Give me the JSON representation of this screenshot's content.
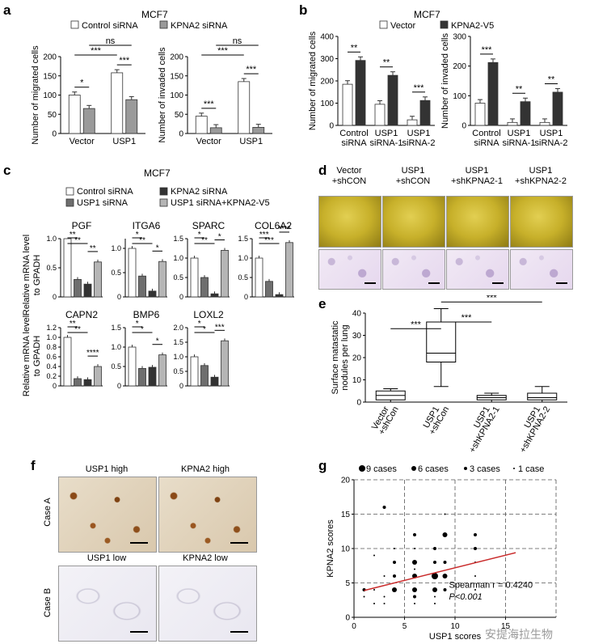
{
  "panel_a": {
    "letter": "a",
    "title": "MCF7",
    "legend": [
      "Control siRNA",
      "KPNA2 siRNA"
    ],
    "charts": [
      {
        "type": "bar",
        "ylabel": "Number of migrated cells",
        "ylim": [
          0,
          200
        ],
        "yticks": [
          "0",
          "50",
          "100",
          "150",
          "200"
        ],
        "categories": [
          "Vector",
          "USP1"
        ],
        "series": [
          {
            "name": "Control siRNA",
            "values": [
              100,
              158
            ]
          },
          {
            "name": "KPNA2 siRNA",
            "values": [
              65,
              88
            ]
          }
        ],
        "sig": [
          "*",
          "***",
          "***",
          "ns"
        ]
      },
      {
        "type": "bar",
        "ylabel": "Number of invaded cells",
        "ylim": [
          0,
          200
        ],
        "yticks": [
          "0",
          "50",
          "100",
          "150",
          "200"
        ],
        "categories": [
          "Vector",
          "USP1"
        ],
        "series": [
          {
            "name": "Control siRNA",
            "values": [
              45,
              135
            ]
          },
          {
            "name": "KPNA2 siRNA",
            "values": [
              15,
              16
            ]
          }
        ],
        "sig": [
          "***",
          "***",
          "***",
          "ns"
        ]
      }
    ]
  },
  "panel_b": {
    "letter": "b",
    "title": "MCF7",
    "legend": [
      "Vector",
      "KPNA2-V5"
    ],
    "charts": [
      {
        "type": "bar",
        "ylabel": "Number of migrated cells",
        "ylim": [
          0,
          400
        ],
        "yticks": [
          "0",
          "100",
          "200",
          "300",
          "400"
        ],
        "categories": [
          [
            "Control",
            "siRNA"
          ],
          [
            "USP1",
            "siRNA-1"
          ],
          [
            "USP1",
            "siRNA-2"
          ]
        ],
        "series": [
          {
            "name": "Vector",
            "values": [
              185,
              95,
              25
            ]
          },
          {
            "name": "KPNA2-V5",
            "values": [
              292,
              225,
              112
            ]
          }
        ],
        "sig": [
          "**",
          "**",
          "***"
        ]
      },
      {
        "type": "bar",
        "ylabel": "Number of invaded cells",
        "ylim": [
          0,
          300
        ],
        "yticks": [
          "0",
          "100",
          "200",
          "300"
        ],
        "categories": [
          [
            "Control",
            "siRNA"
          ],
          [
            "USP1",
            "siRNA-1"
          ],
          [
            "USP1",
            "siRNA-2"
          ]
        ],
        "series": [
          {
            "name": "Vector",
            "values": [
              75,
              10,
              10
            ]
          },
          {
            "name": "KPNA2-V5",
            "values": [
              212,
              80,
              112
            ]
          }
        ],
        "sig": [
          "***",
          "**",
          "**"
        ]
      }
    ]
  },
  "panel_c": {
    "letter": "c",
    "title": "MCF7",
    "legend": [
      "Control siRNA",
      "KPNA2 siRNA",
      "USP1 siRNA",
      "USP1 siRNA+KPNA2-V5"
    ],
    "ylabel_top": [
      "Relative mRNA level",
      "to GPADH"
    ],
    "ylabel_bottom": [
      "Relative mRNA level",
      "to GPADH"
    ],
    "charts": [
      {
        "gene": "PGF",
        "ylim": [
          0,
          1.0
        ],
        "yticks": [
          "0",
          "0.5",
          "1.0"
        ],
        "values": [
          1.0,
          0.3,
          0.22,
          0.6
        ],
        "sig": [
          "**",
          "**",
          "**"
        ]
      },
      {
        "gene": "ITGA6",
        "ylim": [
          0,
          1.2
        ],
        "yticks": [
          "0",
          "0.5",
          "1.0"
        ],
        "values": [
          1.0,
          0.43,
          0.12,
          0.73
        ],
        "sig": [
          "*",
          "**",
          "*"
        ]
      },
      {
        "gene": "SPARC",
        "ylim": [
          0,
          1.5
        ],
        "yticks": [
          "0",
          "0.5",
          "1.0",
          "1.5"
        ],
        "values": [
          1.0,
          0.5,
          0.08,
          1.2
        ],
        "sig": [
          "*",
          "**",
          "*"
        ]
      },
      {
        "gene": "COL6A2",
        "ylim": [
          0,
          1.5
        ],
        "yticks": [
          "0",
          "0.5",
          "1.0",
          "1.5"
        ],
        "values": [
          1.0,
          0.4,
          0.06,
          1.4
        ],
        "sig": [
          "***",
          "***",
          "****"
        ]
      },
      {
        "gene": "CAPN2",
        "ylim": [
          0,
          1.2
        ],
        "yticks": [
          "0",
          "0.2",
          "0.4",
          "0.6",
          "0.8",
          "1.0",
          "1.2"
        ],
        "values": [
          1.0,
          0.15,
          0.13,
          0.4
        ],
        "sig": [
          "**",
          "**",
          "****"
        ]
      },
      {
        "gene": "BMP6",
        "ylim": [
          0,
          1.5
        ],
        "yticks": [
          "0",
          "0.5",
          "1.0",
          "1.5"
        ],
        "values": [
          1.0,
          0.45,
          0.48,
          0.8
        ],
        "sig": [
          "*",
          "*",
          "*"
        ]
      },
      {
        "gene": "LOXL2",
        "ylim": [
          0,
          2.0
        ],
        "yticks": [
          "0",
          "0.5",
          "1.0",
          "1.5",
          "2.0"
        ],
        "values": [
          1.0,
          0.7,
          0.3,
          1.55
        ],
        "sig": [
          "*",
          "*",
          "***"
        ]
      }
    ]
  },
  "panel_d": {
    "letter": "d",
    "groups": [
      [
        "Vector",
        "+shCON"
      ],
      [
        "USP1",
        "+shCON"
      ],
      [
        "USP1",
        "+shKPNA2-1"
      ],
      [
        "USP1",
        "+shKPNA2-2"
      ]
    ]
  },
  "panel_e": {
    "letter": "e",
    "chart_data": {
      "type": "box",
      "ylabel": [
        "Surface matastatic",
        "nodules per lung"
      ],
      "ylim": [
        0,
        40
      ],
      "yticks": [
        "0",
        "10",
        "20",
        "30",
        "40"
      ],
      "categories": [
        [
          "Vector",
          "+shCon"
        ],
        [
          "USP1",
          "+shCon"
        ],
        [
          "USP1",
          "+shKPNA2-1"
        ],
        [
          "USP1",
          "+shKPNA2-2"
        ]
      ],
      "boxes": [
        {
          "min": 0,
          "q1": 1,
          "median": 3,
          "q3": 5,
          "max": 6
        },
        {
          "min": 7,
          "q1": 18,
          "median": 22,
          "q3": 36,
          "max": 42
        },
        {
          "min": 0,
          "q1": 1,
          "median": 2,
          "q3": 3,
          "max": 4
        },
        {
          "min": 0,
          "q1": 1,
          "median": 2,
          "q3": 4,
          "max": 7
        }
      ],
      "sig": [
        "***",
        "***",
        "***"
      ]
    }
  },
  "panel_f": {
    "letter": "f",
    "rows": [
      "Case A",
      "Case B"
    ],
    "labels": [
      "USP1 high",
      "KPNA2 high",
      "USP1 low",
      "KPNA2 low"
    ]
  },
  "panel_g": {
    "letter": "g",
    "chart_data": {
      "type": "scatter",
      "xlabel": "USP1 scores",
      "ylabel": "KPNA2 scores",
      "xlim": [
        0,
        20
      ],
      "ylim": [
        0,
        20
      ],
      "yticks": [
        "0",
        "5",
        "10",
        "15",
        "20"
      ],
      "xticks": [
        "0",
        "5",
        "10",
        "15"
      ],
      "legend": [
        "9 cases",
        "6 cases",
        "3 cases",
        "1 case"
      ],
      "spearman": "Spearman r = 0.4240",
      "pvalue": "P<0.001",
      "fit": {
        "x": [
          1,
          16
        ],
        "y": [
          3.9,
          9.4
        ]
      },
      "points": [
        {
          "x": 3,
          "y": 16,
          "n": 3
        },
        {
          "x": 9,
          "y": 15,
          "n": 1
        },
        {
          "x": 6,
          "y": 12,
          "n": 3
        },
        {
          "x": 9,
          "y": 12,
          "n": 6
        },
        {
          "x": 12,
          "y": 12,
          "n": 3
        },
        {
          "x": 4,
          "y": 10,
          "n": 1
        },
        {
          "x": 6,
          "y": 10,
          "n": 1
        },
        {
          "x": 8,
          "y": 10,
          "n": 3
        },
        {
          "x": 12,
          "y": 10,
          "n": 3
        },
        {
          "x": 2,
          "y": 9,
          "n": 1
        },
        {
          "x": 4,
          "y": 8,
          "n": 3
        },
        {
          "x": 6,
          "y": 8,
          "n": 6
        },
        {
          "x": 8,
          "y": 8,
          "n": 3
        },
        {
          "x": 9,
          "y": 8,
          "n": 3
        },
        {
          "x": 12,
          "y": 8,
          "n": 1
        },
        {
          "x": 6,
          "y": 7,
          "n": 1
        },
        {
          "x": 3,
          "y": 6,
          "n": 1
        },
        {
          "x": 4,
          "y": 6,
          "n": 3
        },
        {
          "x": 6,
          "y": 6,
          "n": 6
        },
        {
          "x": 8,
          "y": 6,
          "n": 9
        },
        {
          "x": 9,
          "y": 6,
          "n": 6
        },
        {
          "x": 12,
          "y": 6,
          "n": 1
        },
        {
          "x": 1,
          "y": 4,
          "n": 3
        },
        {
          "x": 2,
          "y": 4,
          "n": 1
        },
        {
          "x": 4,
          "y": 4,
          "n": 6
        },
        {
          "x": 6,
          "y": 4,
          "n": 6
        },
        {
          "x": 8,
          "y": 4,
          "n": 6
        },
        {
          "x": 9,
          "y": 4,
          "n": 3
        },
        {
          "x": 12,
          "y": 4,
          "n": 1
        },
        {
          "x": 1,
          "y": 3,
          "n": 1
        },
        {
          "x": 3,
          "y": 3,
          "n": 1
        },
        {
          "x": 6,
          "y": 3,
          "n": 3
        },
        {
          "x": 8,
          "y": 3,
          "n": 1
        },
        {
          "x": 2,
          "y": 2,
          "n": 1
        },
        {
          "x": 3,
          "y": 2,
          "n": 1
        },
        {
          "x": 6,
          "y": 2,
          "n": 1
        },
        {
          "x": 8,
          "y": 2,
          "n": 1
        }
      ]
    }
  },
  "watermark": "安提海拉生物"
}
